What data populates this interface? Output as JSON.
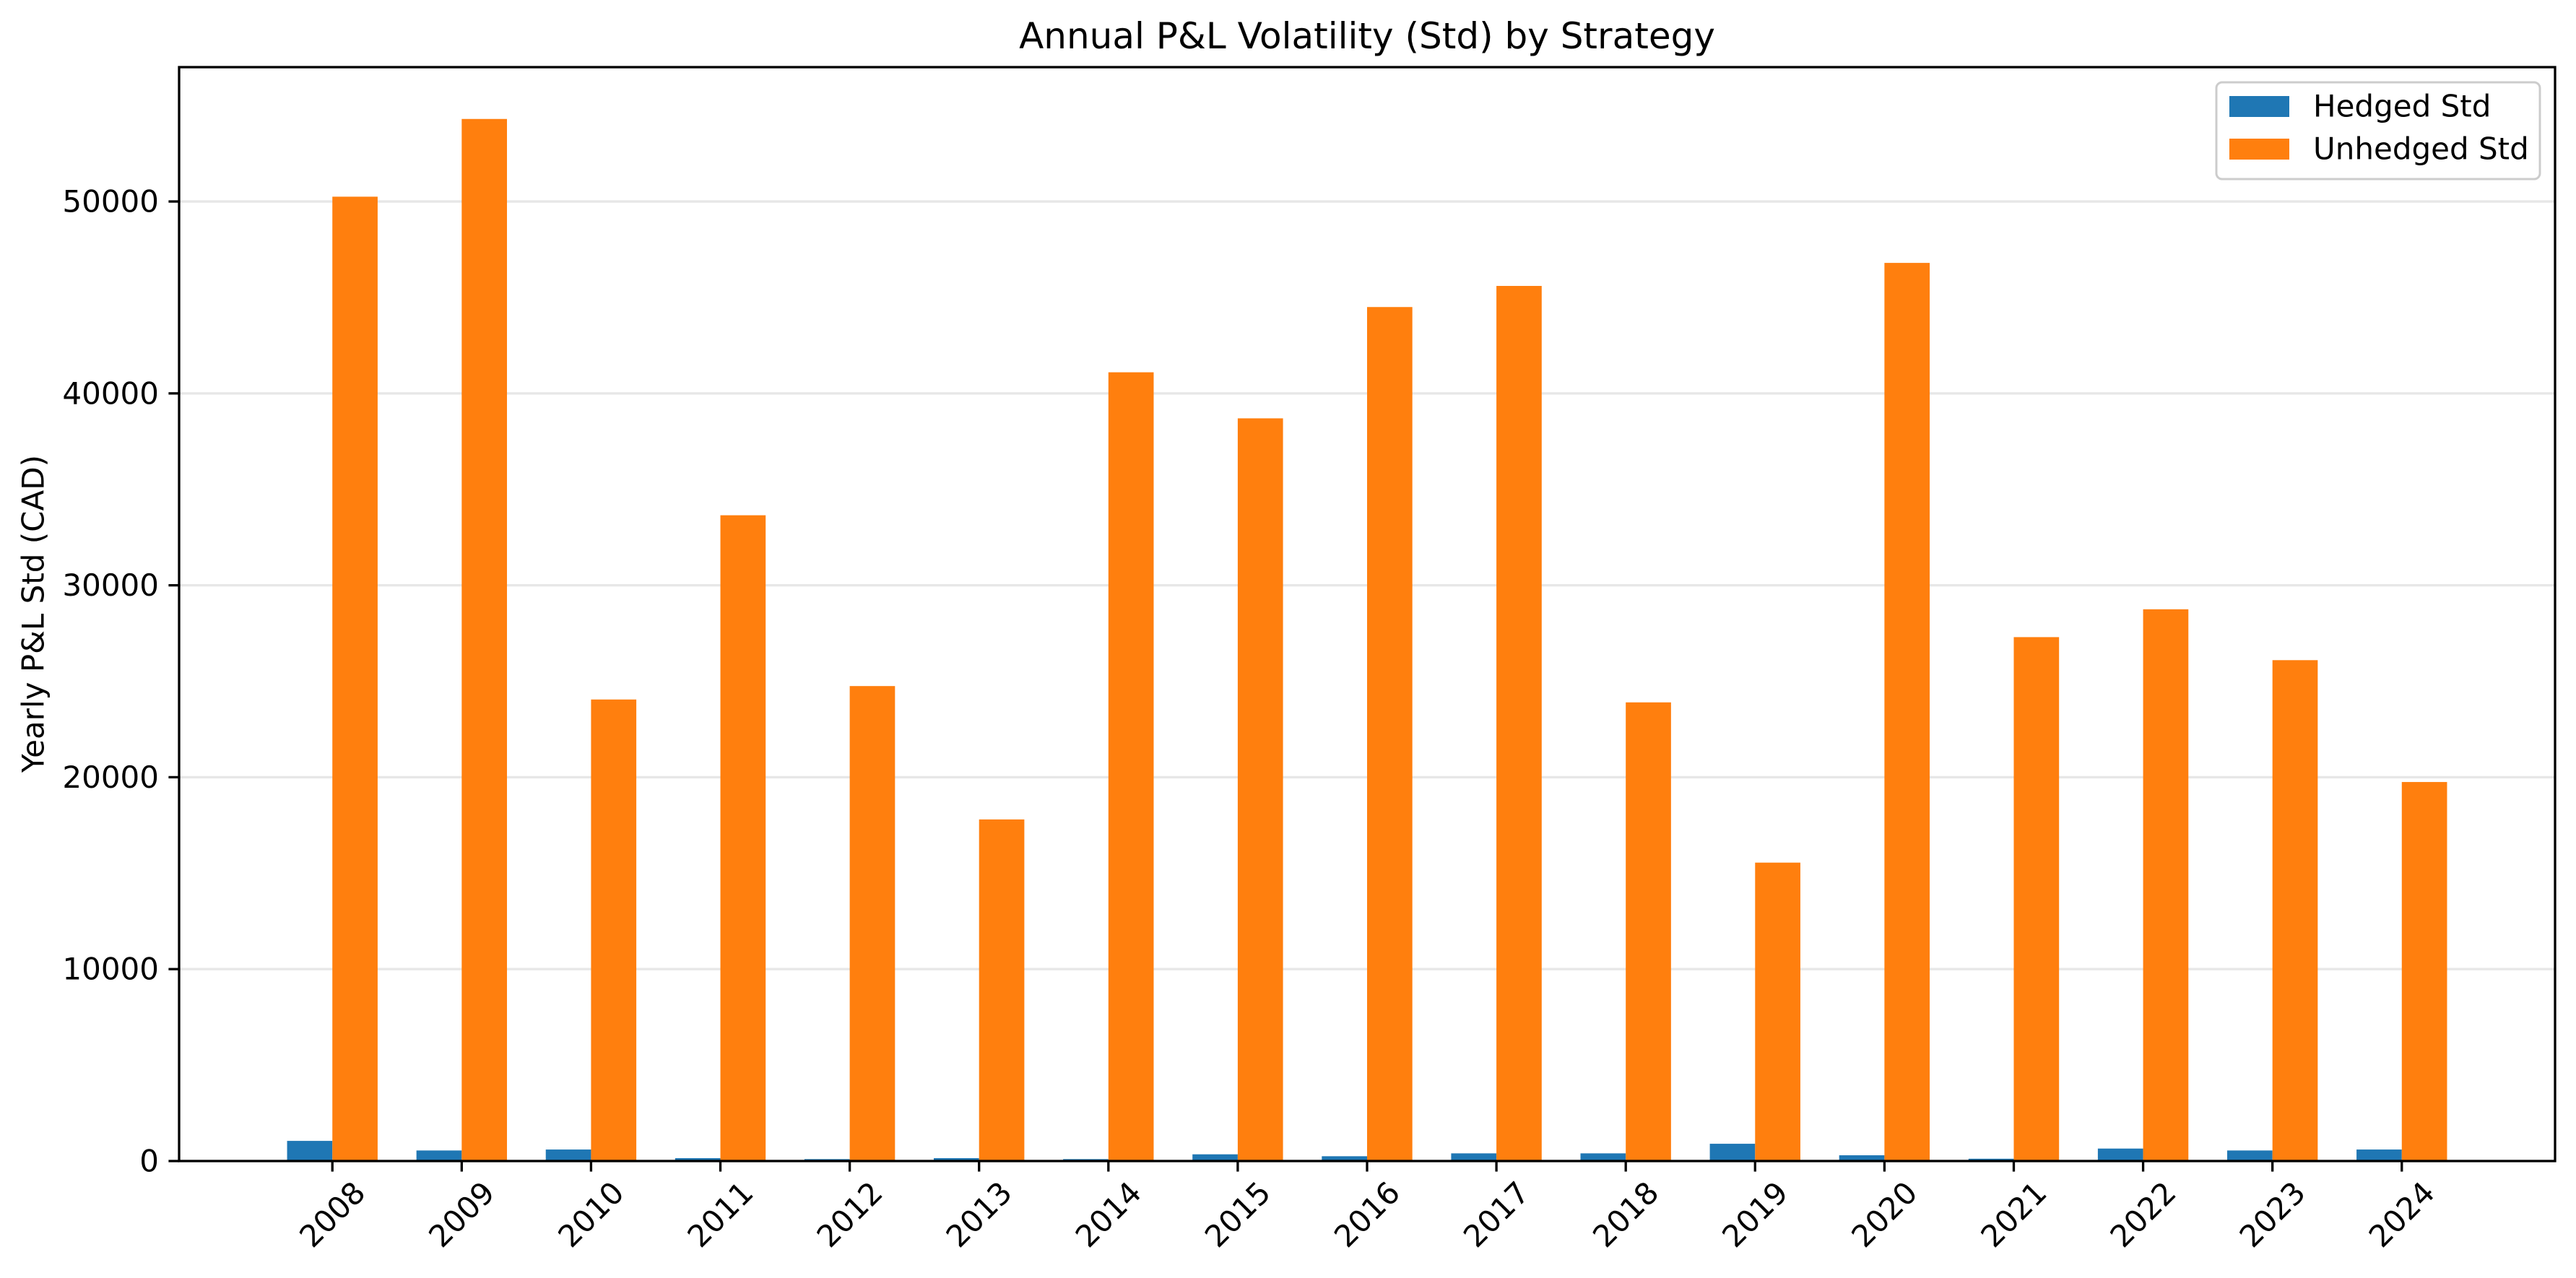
{
  "chart_data": {
    "type": "bar",
    "title": "Annual P&L Volatility (Std) by Strategy",
    "ylabel": "Yearly P&L Std (CAD)",
    "categories": [
      "2008",
      "2009",
      "2010",
      "2011",
      "2012",
      "2013",
      "2014",
      "2015",
      "2016",
      "2017",
      "2018",
      "2019",
      "2020",
      "2021",
      "2022",
      "2023",
      "2024"
    ],
    "series": [
      {
        "name": "Hedged Std",
        "color": "#1f77b4",
        "values": [
          1050,
          550,
          600,
          150,
          100,
          150,
          100,
          350,
          250,
          400,
          400,
          900,
          300,
          120,
          650,
          550,
          600
        ]
      },
      {
        "name": "Unhedged Std",
        "color": "#ff7f0e",
        "values": [
          50250,
          54300,
          24050,
          33650,
          24750,
          17800,
          41100,
          38700,
          44500,
          45600,
          23900,
          15550,
          46800,
          27300,
          28750,
          26100,
          19750
        ]
      }
    ],
    "ylim": [
      0,
      57000
    ],
    "yticks": [
      0,
      10000,
      20000,
      30000,
      40000,
      50000
    ],
    "grid": {
      "x": false,
      "y": true
    },
    "legend": "top-right"
  }
}
